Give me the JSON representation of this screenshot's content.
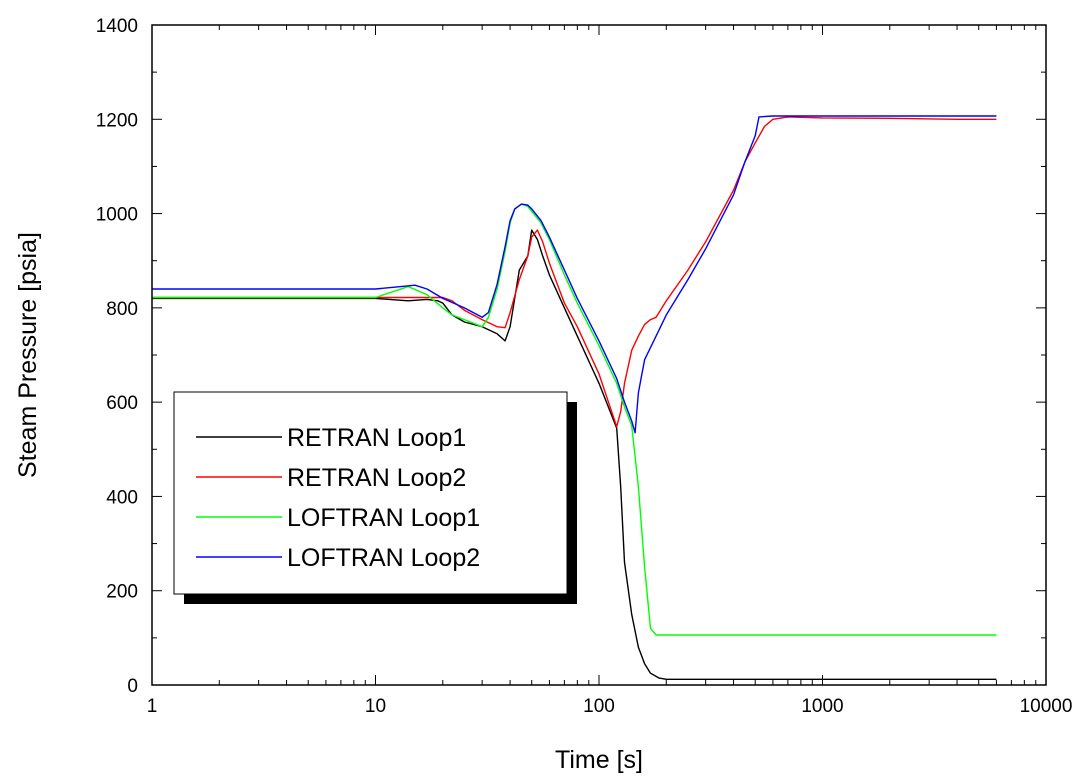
{
  "chart_data": {
    "type": "line",
    "xlabel": "Time [s]",
    "ylabel": "Steam Pressure [psia]",
    "xscale": "log",
    "xlim": [
      1,
      10000
    ],
    "ylim": [
      0,
      1400
    ],
    "x_ticks": [
      1,
      10,
      100,
      1000,
      10000
    ],
    "x_tick_labels": [
      "1",
      "10",
      "100",
      "1000",
      "10000"
    ],
    "y_ticks": [
      0,
      200,
      400,
      600,
      800,
      1000,
      1200,
      1400
    ],
    "y_tick_labels": [
      "0",
      "200",
      "400",
      "600",
      "800",
      "1000",
      "1200",
      "1400"
    ],
    "grid": false,
    "legend_position": "lower-left",
    "series": [
      {
        "name": "RETRAN Loop1",
        "color": "#000000",
        "x": [
          1,
          10,
          14,
          17,
          19,
          20,
          22,
          25,
          30,
          35,
          38,
          40,
          44,
          48,
          50,
          53,
          56,
          60,
          70,
          80,
          100,
          120,
          125,
          130,
          140,
          150,
          160,
          170,
          185,
          200,
          300,
          600,
          1000,
          6000
        ],
        "y": [
          820,
          820,
          815,
          818,
          815,
          810,
          785,
          770,
          760,
          745,
          730,
          760,
          880,
          910,
          965,
          945,
          910,
          870,
          800,
          740,
          640,
          545,
          420,
          260,
          150,
          80,
          45,
          25,
          15,
          12,
          12,
          12,
          12,
          12
        ]
      },
      {
        "name": "RETRAN Loop2",
        "color": "#ff0000",
        "x": [
          1,
          10,
          15,
          20,
          22,
          25,
          30,
          35,
          38,
          40,
          44,
          48,
          50,
          53,
          56,
          60,
          70,
          80,
          100,
          120,
          125,
          130,
          140,
          150,
          160,
          170,
          180,
          200,
          250,
          300,
          400,
          450,
          500,
          550,
          600,
          700,
          1000,
          2000,
          4000,
          6000
        ],
        "y": [
          822,
          822,
          822,
          822,
          815,
          795,
          775,
          760,
          758,
          790,
          860,
          910,
          950,
          965,
          940,
          895,
          810,
          760,
          660,
          548,
          580,
          640,
          710,
          740,
          765,
          775,
          780,
          815,
          880,
          940,
          1050,
          1110,
          1150,
          1185,
          1200,
          1205,
          1203,
          1202,
          1200,
          1200
        ]
      },
      {
        "name": "LOFTRAN Loop1",
        "color": "#00ff00",
        "x": [
          1,
          10,
          14,
          17,
          20,
          22,
          25,
          30,
          32,
          35,
          38,
          40,
          42,
          45,
          48,
          50,
          55,
          60,
          70,
          80,
          100,
          120,
          130,
          140,
          150,
          160,
          170,
          180,
          200,
          500,
          1000,
          6000
        ],
        "y": [
          822,
          822,
          845,
          828,
          800,
          785,
          775,
          760,
          780,
          840,
          920,
          980,
          1010,
          1020,
          1015,
          1005,
          980,
          945,
          870,
          810,
          720,
          640,
          590,
          550,
          420,
          250,
          120,
          106,
          106,
          106,
          106,
          106
        ]
      },
      {
        "name": "LOFTRAN Loop2",
        "color": "#0000ff",
        "x": [
          1,
          10,
          13,
          15,
          17,
          20,
          25,
          30,
          32,
          35,
          38,
          40,
          42,
          45,
          48,
          50,
          55,
          60,
          70,
          80,
          100,
          120,
          130,
          140,
          145,
          150,
          160,
          180,
          200,
          250,
          300,
          400,
          450,
          500,
          520,
          600,
          1000,
          2000,
          6000
        ],
        "y": [
          840,
          840,
          845,
          848,
          840,
          820,
          800,
          780,
          790,
          850,
          930,
          985,
          1010,
          1020,
          1018,
          1010,
          985,
          950,
          880,
          820,
          730,
          650,
          600,
          560,
          535,
          620,
          690,
          740,
          785,
          860,
          925,
          1040,
          1110,
          1165,
          1205,
          1207,
          1207,
          1207,
          1207
        ]
      }
    ]
  }
}
